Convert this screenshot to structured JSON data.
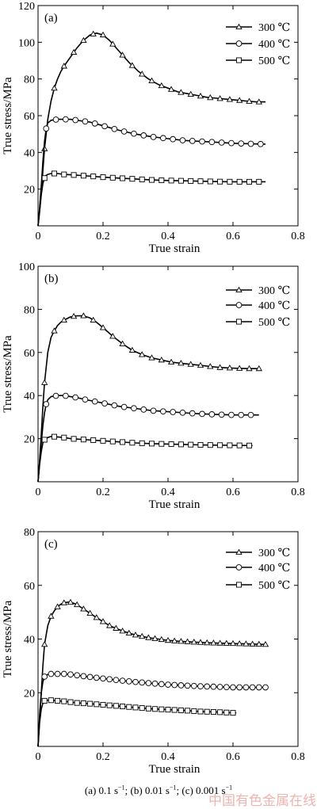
{
  "chart_data": [
    {
      "type": "line",
      "panel_label": "(a)",
      "xlabel": "True strain",
      "ylabel": "True stress/MPa",
      "xlim": [
        0,
        0.8
      ],
      "ylim": [
        0,
        120
      ],
      "xticks": [
        "0",
        "0.2",
        "0.4",
        "0.6",
        "0.8"
      ],
      "yticks": [
        "0",
        "20",
        "40",
        "60",
        "80",
        "100",
        "120"
      ],
      "legend_position": "top-right",
      "series": [
        {
          "name": "300 ℃",
          "marker": "triangle",
          "x": [
            0,
            0.005,
            0.01,
            0.015,
            0.02,
            0.03,
            0.04,
            0.05,
            0.06,
            0.07,
            0.08,
            0.1,
            0.12,
            0.14,
            0.16,
            0.18,
            0.2,
            0.22,
            0.25,
            0.28,
            0.31,
            0.34,
            0.37,
            0.4,
            0.43,
            0.46,
            0.49,
            0.52,
            0.55,
            0.58,
            0.61,
            0.64,
            0.67,
            0.7
          ],
          "y": [
            0,
            8,
            18,
            30,
            42,
            58,
            68,
            75,
            80,
            84,
            87,
            92,
            97,
            101,
            104,
            105,
            104,
            101,
            95,
            89,
            84,
            80,
            77,
            75,
            73,
            72,
            71,
            70,
            69.5,
            69,
            68.5,
            68,
            67.5,
            67.5
          ]
        },
        {
          "name": "400 ℃",
          "marker": "circle",
          "x": [
            0,
            0.005,
            0.01,
            0.015,
            0.02,
            0.025,
            0.03,
            0.04,
            0.06,
            0.08,
            0.1,
            0.12,
            0.14,
            0.16,
            0.2,
            0.25,
            0.3,
            0.35,
            0.4,
            0.45,
            0.5,
            0.55,
            0.6,
            0.65,
            0.7
          ],
          "y": [
            0,
            10,
            22,
            35,
            46,
            53,
            56,
            57.5,
            58,
            58,
            58,
            57.5,
            57,
            56.5,
            54.5,
            52,
            50,
            48.5,
            47.5,
            46.5,
            46,
            45.5,
            45,
            44.7,
            44.5
          ]
        },
        {
          "name": "500 ℃",
          "marker": "square",
          "x": [
            0,
            0.005,
            0.01,
            0.015,
            0.02,
            0.025,
            0.03,
            0.04,
            0.06,
            0.08,
            0.1,
            0.15,
            0.2,
            0.25,
            0.3,
            0.35,
            0.4,
            0.45,
            0.5,
            0.55,
            0.6,
            0.65,
            0.7
          ],
          "y": [
            0,
            8,
            17,
            23,
            26,
            27.5,
            28,
            28.5,
            28.5,
            28,
            27.8,
            27.2,
            26.5,
            26,
            25.5,
            25,
            24.7,
            24.5,
            24.3,
            24.1,
            24,
            24,
            24
          ]
        }
      ]
    },
    {
      "type": "line",
      "panel_label": "(b)",
      "xlabel": "True strain",
      "ylabel": "True stress/MPa",
      "xlim": [
        0,
        0.8
      ],
      "ylim": [
        0,
        100
      ],
      "xticks": [
        "0",
        "0.2",
        "0.4",
        "0.6",
        "0.8"
      ],
      "yticks": [
        "0",
        "20",
        "40",
        "60",
        "80",
        "100"
      ],
      "legend_position": "top-right",
      "series": [
        {
          "name": "300 ℃",
          "marker": "triangle",
          "x": [
            0,
            0.005,
            0.01,
            0.015,
            0.02,
            0.03,
            0.04,
            0.05,
            0.06,
            0.07,
            0.08,
            0.1,
            0.12,
            0.14,
            0.16,
            0.18,
            0.2,
            0.23,
            0.26,
            0.29,
            0.32,
            0.35,
            0.38,
            0.41,
            0.44,
            0.47,
            0.5,
            0.53,
            0.56,
            0.59,
            0.62,
            0.65,
            0.68
          ],
          "y": [
            0,
            10,
            22,
            35,
            46,
            60,
            67,
            70,
            72.5,
            74,
            75,
            76.5,
            77,
            77,
            76,
            74,
            71.5,
            67.5,
            64,
            61,
            59,
            57.5,
            56.5,
            55.5,
            55,
            54.5,
            54,
            53.5,
            53,
            52.8,
            52.6,
            52.5,
            52.5
          ]
        },
        {
          "name": "400 ℃",
          "marker": "circle",
          "x": [
            0,
            0.005,
            0.01,
            0.015,
            0.02,
            0.025,
            0.03,
            0.04,
            0.06,
            0.08,
            0.1,
            0.12,
            0.15,
            0.2,
            0.25,
            0.3,
            0.35,
            0.4,
            0.45,
            0.5,
            0.55,
            0.6,
            0.65,
            0.68
          ],
          "y": [
            0,
            9,
            18,
            26,
            32,
            36,
            38,
            39.5,
            40,
            40,
            39.5,
            39,
            38,
            36.5,
            35,
            34,
            33,
            32.5,
            32,
            31.5,
            31.2,
            31,
            31,
            31
          ]
        },
        {
          "name": "500 ℃",
          "marker": "square",
          "x": [
            0,
            0.005,
            0.01,
            0.015,
            0.02,
            0.03,
            0.04,
            0.06,
            0.08,
            0.1,
            0.15,
            0.2,
            0.25,
            0.3,
            0.35,
            0.4,
            0.45,
            0.5,
            0.55,
            0.6,
            0.65,
            0.66
          ],
          "y": [
            0,
            8,
            14,
            18,
            19.5,
            20.5,
            21,
            20.8,
            20.5,
            20,
            19.5,
            19,
            18.5,
            18,
            17.7,
            17.5,
            17.3,
            17.1,
            17,
            16.9,
            16.8,
            16.8
          ]
        }
      ]
    },
    {
      "type": "line",
      "panel_label": "(c)",
      "xlabel": "True strain",
      "ylabel": "True stress/MPa",
      "xlim": [
        0,
        0.8
      ],
      "ylim": [
        0,
        80
      ],
      "xticks": [
        "0",
        "0.2",
        "0.4",
        "0.6",
        "0.8"
      ],
      "yticks": [
        "0",
        "20",
        "40",
        "60",
        "80"
      ],
      "legend_position": "top-right",
      "series": [
        {
          "name": "300 ℃",
          "marker": "triangle",
          "x": [
            0,
            0.005,
            0.01,
            0.015,
            0.02,
            0.03,
            0.04,
            0.05,
            0.06,
            0.07,
            0.08,
            0.09,
            0.1,
            0.11,
            0.12,
            0.13,
            0.14,
            0.15,
            0.16,
            0.18,
            0.2,
            0.22,
            0.24,
            0.26,
            0.28,
            0.3,
            0.32,
            0.34,
            0.37,
            0.4,
            0.43,
            0.46,
            0.49,
            0.52,
            0.55,
            0.58,
            0.61,
            0.64,
            0.67,
            0.7
          ],
          "y": [
            0,
            10,
            20,
            30,
            38,
            45,
            48.5,
            50.5,
            52,
            53,
            53.5,
            53.7,
            53.7,
            53.3,
            52.8,
            52,
            51.2,
            50.4,
            49.6,
            48,
            46.5,
            45,
            44,
            43,
            42.2,
            41.5,
            41,
            40.5,
            40,
            39.5,
            39.2,
            39,
            38.8,
            38.6,
            38.5,
            38.4,
            38.3,
            38.2,
            38.1,
            38
          ]
        },
        {
          "name": "400 ℃",
          "marker": "circle",
          "x": [
            0,
            0.005,
            0.01,
            0.015,
            0.02,
            0.03,
            0.04,
            0.06,
            0.08,
            0.1,
            0.12,
            0.15,
            0.2,
            0.25,
            0.3,
            0.35,
            0.4,
            0.45,
            0.5,
            0.55,
            0.6,
            0.65,
            0.7
          ],
          "y": [
            0,
            12,
            20,
            24,
            26,
            26.8,
            27,
            27,
            27,
            26.8,
            26.5,
            26,
            25.3,
            24.6,
            24,
            23.5,
            23,
            22.7,
            22.4,
            22.2,
            22,
            22,
            22
          ]
        },
        {
          "name": "500 ℃",
          "marker": "square",
          "x": [
            0,
            0.005,
            0.01,
            0.015,
            0.02,
            0.03,
            0.04,
            0.06,
            0.08,
            0.1,
            0.12,
            0.15,
            0.2,
            0.25,
            0.3,
            0.35,
            0.4,
            0.45,
            0.5,
            0.55,
            0.6,
            0.61
          ],
          "y": [
            0,
            9,
            14,
            16,
            17,
            17.2,
            17.2,
            17,
            16.8,
            16.5,
            16.2,
            16,
            15.5,
            15,
            14.5,
            14,
            13.7,
            13.4,
            13,
            12.8,
            12.5,
            12.5
          ]
        }
      ]
    }
  ],
  "caption": {
    "part1": "(a) 0.1 s",
    "part2": "; (b) 0.01 s",
    "part3": "; (c) 0.001 s",
    "exponent": "−1"
  },
  "watermark": "中国有色金属在线"
}
